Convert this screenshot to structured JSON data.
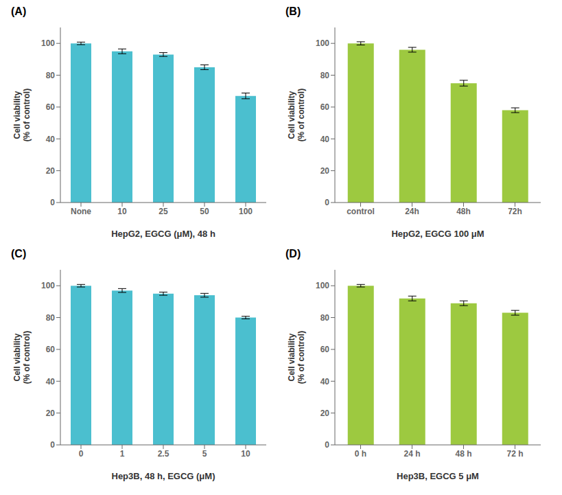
{
  "chart_data": [
    {
      "type": "bar",
      "title": "(A)",
      "categories": [
        "None",
        "10",
        "25",
        "50",
        "100"
      ],
      "values": [
        100,
        95,
        93,
        85,
        67
      ],
      "errors": [
        0.8,
        1.5,
        1.2,
        1.5,
        1.8
      ],
      "color": "#4BBFCF",
      "xlabel": "HepG2, EGCG (μM), 48 h",
      "ylabel": "Cell viability\n(% of control)",
      "ylim": [
        0,
        110
      ],
      "yticks": [
        0,
        20,
        40,
        60,
        80,
        100
      ]
    },
    {
      "type": "bar",
      "title": "(B)",
      "categories": [
        "control",
        "24h",
        "48h",
        "72h"
      ],
      "values": [
        100,
        96,
        75,
        58
      ],
      "errors": [
        1.0,
        1.5,
        1.8,
        1.5
      ],
      "color": "#9DC940",
      "xlabel": "HepG2, EGCG 100 μM",
      "ylabel": "Cell viability\n(% of control)",
      "ylim": [
        0,
        110
      ],
      "yticks": [
        0,
        20,
        40,
        60,
        80,
        100
      ]
    },
    {
      "type": "bar",
      "title": "(C)",
      "categories": [
        "0",
        "1",
        "2.5",
        "5",
        "10"
      ],
      "values": [
        100,
        97,
        95,
        94,
        80
      ],
      "errors": [
        0.8,
        1.2,
        1.0,
        1.2,
        0.8
      ],
      "color": "#4BBFCF",
      "xlabel": "Hep3B, 48 h, EGCG (μM)",
      "ylabel": "Cell viability\n(% of control)",
      "ylim": [
        0,
        110
      ],
      "yticks": [
        0,
        20,
        40,
        60,
        80,
        100
      ]
    },
    {
      "type": "bar",
      "title": "(D)",
      "categories": [
        "0 h",
        "24 h",
        "48 h",
        "72 h"
      ],
      "values": [
        100,
        92,
        89,
        83
      ],
      "errors": [
        0.8,
        1.5,
        1.5,
        1.5
      ],
      "color": "#9DC940",
      "xlabel": "Hep3B, EGCG 5 μM",
      "ylabel": "Cell viability\n(% of control)",
      "ylim": [
        0,
        110
      ],
      "yticks": [
        0,
        20,
        40,
        60,
        80,
        100
      ]
    }
  ]
}
